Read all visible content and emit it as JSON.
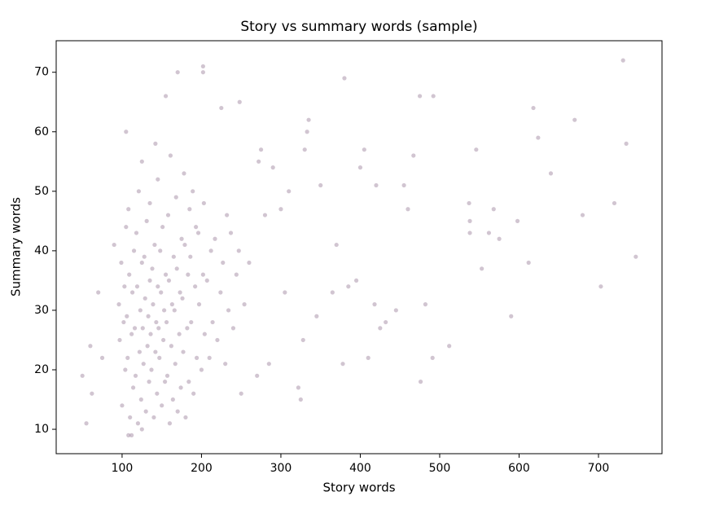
{
  "chart_data": {
    "type": "scatter",
    "title": "Story vs summary words (sample)",
    "x_label": "Story words",
    "y_label": "Summary words",
    "color": "#8c6d8c",
    "alpha": 0.4,
    "xlim": [
      17,
      780
    ],
    "ylim": [
      5.9,
      75.3
    ],
    "xticks": [
      100,
      200,
      300,
      400,
      500,
      600,
      700
    ],
    "yticks": [
      10,
      20,
      30,
      40,
      50,
      60,
      70
    ],
    "x": [
      100,
      104,
      97,
      102,
      96,
      103,
      99,
      105,
      110,
      114,
      107,
      112,
      106,
      113,
      109,
      115,
      108,
      120,
      124,
      117,
      122,
      116,
      123,
      119,
      125,
      118,
      121,
      130,
      134,
      127,
      132,
      126,
      133,
      129,
      135,
      128,
      131,
      125,
      140,
      144,
      137,
      142,
      136,
      143,
      139,
      145,
      138,
      141,
      135,
      142,
      150,
      154,
      147,
      152,
      146,
      153,
      149,
      155,
      148,
      151,
      145,
      160,
      164,
      157,
      162,
      156,
      163,
      159,
      165,
      158,
      161,
      170,
      174,
      167,
      172,
      166,
      173,
      169,
      175,
      168,
      180,
      184,
      177,
      182,
      176,
      183,
      179,
      185,
      178,
      190,
      194,
      187,
      192,
      186,
      193,
      189,
      200,
      204,
      197,
      202,
      196,
      203,
      210,
      214,
      207,
      212,
      220,
      224,
      217,
      230,
      234,
      227,
      232,
      240,
      244,
      237,
      250,
      254,
      247,
      731,
      735,
      747,
      703,
      670,
      680,
      720,
      618,
      624,
      640,
      612,
      598,
      590,
      568,
      575,
      562,
      553,
      546,
      537,
      538,
      538,
      512,
      492,
      491,
      475,
      476,
      467,
      482,
      460,
      455,
      445,
      432,
      425,
      420,
      418,
      410,
      405,
      400,
      380,
      378,
      385,
      395,
      370,
      365,
      350,
      345,
      335,
      333,
      330,
      328,
      322,
      325,
      310,
      305,
      300,
      290,
      275,
      272,
      280,
      285,
      270,
      260,
      248,
      225,
      202,
      202,
      170,
      155,
      105,
      90,
      75,
      62,
      55,
      50,
      60,
      70,
      112,
      108,
      125
    ],
    "y": [
      14,
      20,
      25,
      28,
      31,
      34,
      38,
      44,
      12,
      17,
      22,
      26,
      29,
      33,
      36,
      40,
      47,
      11,
      15,
      19,
      23,
      27,
      30,
      34,
      38,
      43,
      50,
      13,
      18,
      21,
      24,
      27,
      29,
      32,
      35,
      39,
      45,
      55,
      12,
      16,
      20,
      23,
      26,
      28,
      31,
      34,
      37,
      41,
      48,
      58,
      14,
      18,
      22,
      25,
      27,
      30,
      33,
      36,
      40,
      44,
      52,
      11,
      15,
      19,
      24,
      28,
      31,
      35,
      39,
      46,
      56,
      13,
      17,
      21,
      26,
      30,
      33,
      37,
      42,
      49,
      12,
      18,
      23,
      27,
      32,
      36,
      41,
      47,
      53,
      16,
      22,
      28,
      34,
      39,
      44,
      50,
      20,
      26,
      31,
      36,
      43,
      48,
      22,
      28,
      35,
      40,
      25,
      33,
      42,
      21,
      30,
      38,
      46,
      27,
      36,
      43,
      16,
      31,
      40,
      72,
      58,
      39,
      34,
      62,
      46,
      48,
      64,
      59,
      53,
      38,
      45,
      29,
      47,
      42,
      43,
      37,
      57,
      48,
      45,
      43,
      24,
      66,
      22,
      66,
      18,
      56,
      31,
      47,
      51,
      30,
      28,
      27,
      51,
      31,
      22,
      57,
      54,
      69,
      21,
      34,
      35,
      41,
      33,
      51,
      29,
      62,
      60,
      57,
      25,
      17,
      15,
      50,
      33,
      47,
      54,
      57,
      55,
      46,
      21,
      19,
      38,
      65,
      64,
      71,
      70,
      70,
      66,
      60,
      41,
      22,
      16,
      11,
      19,
      24,
      33,
      9,
      9,
      10
    ]
  }
}
